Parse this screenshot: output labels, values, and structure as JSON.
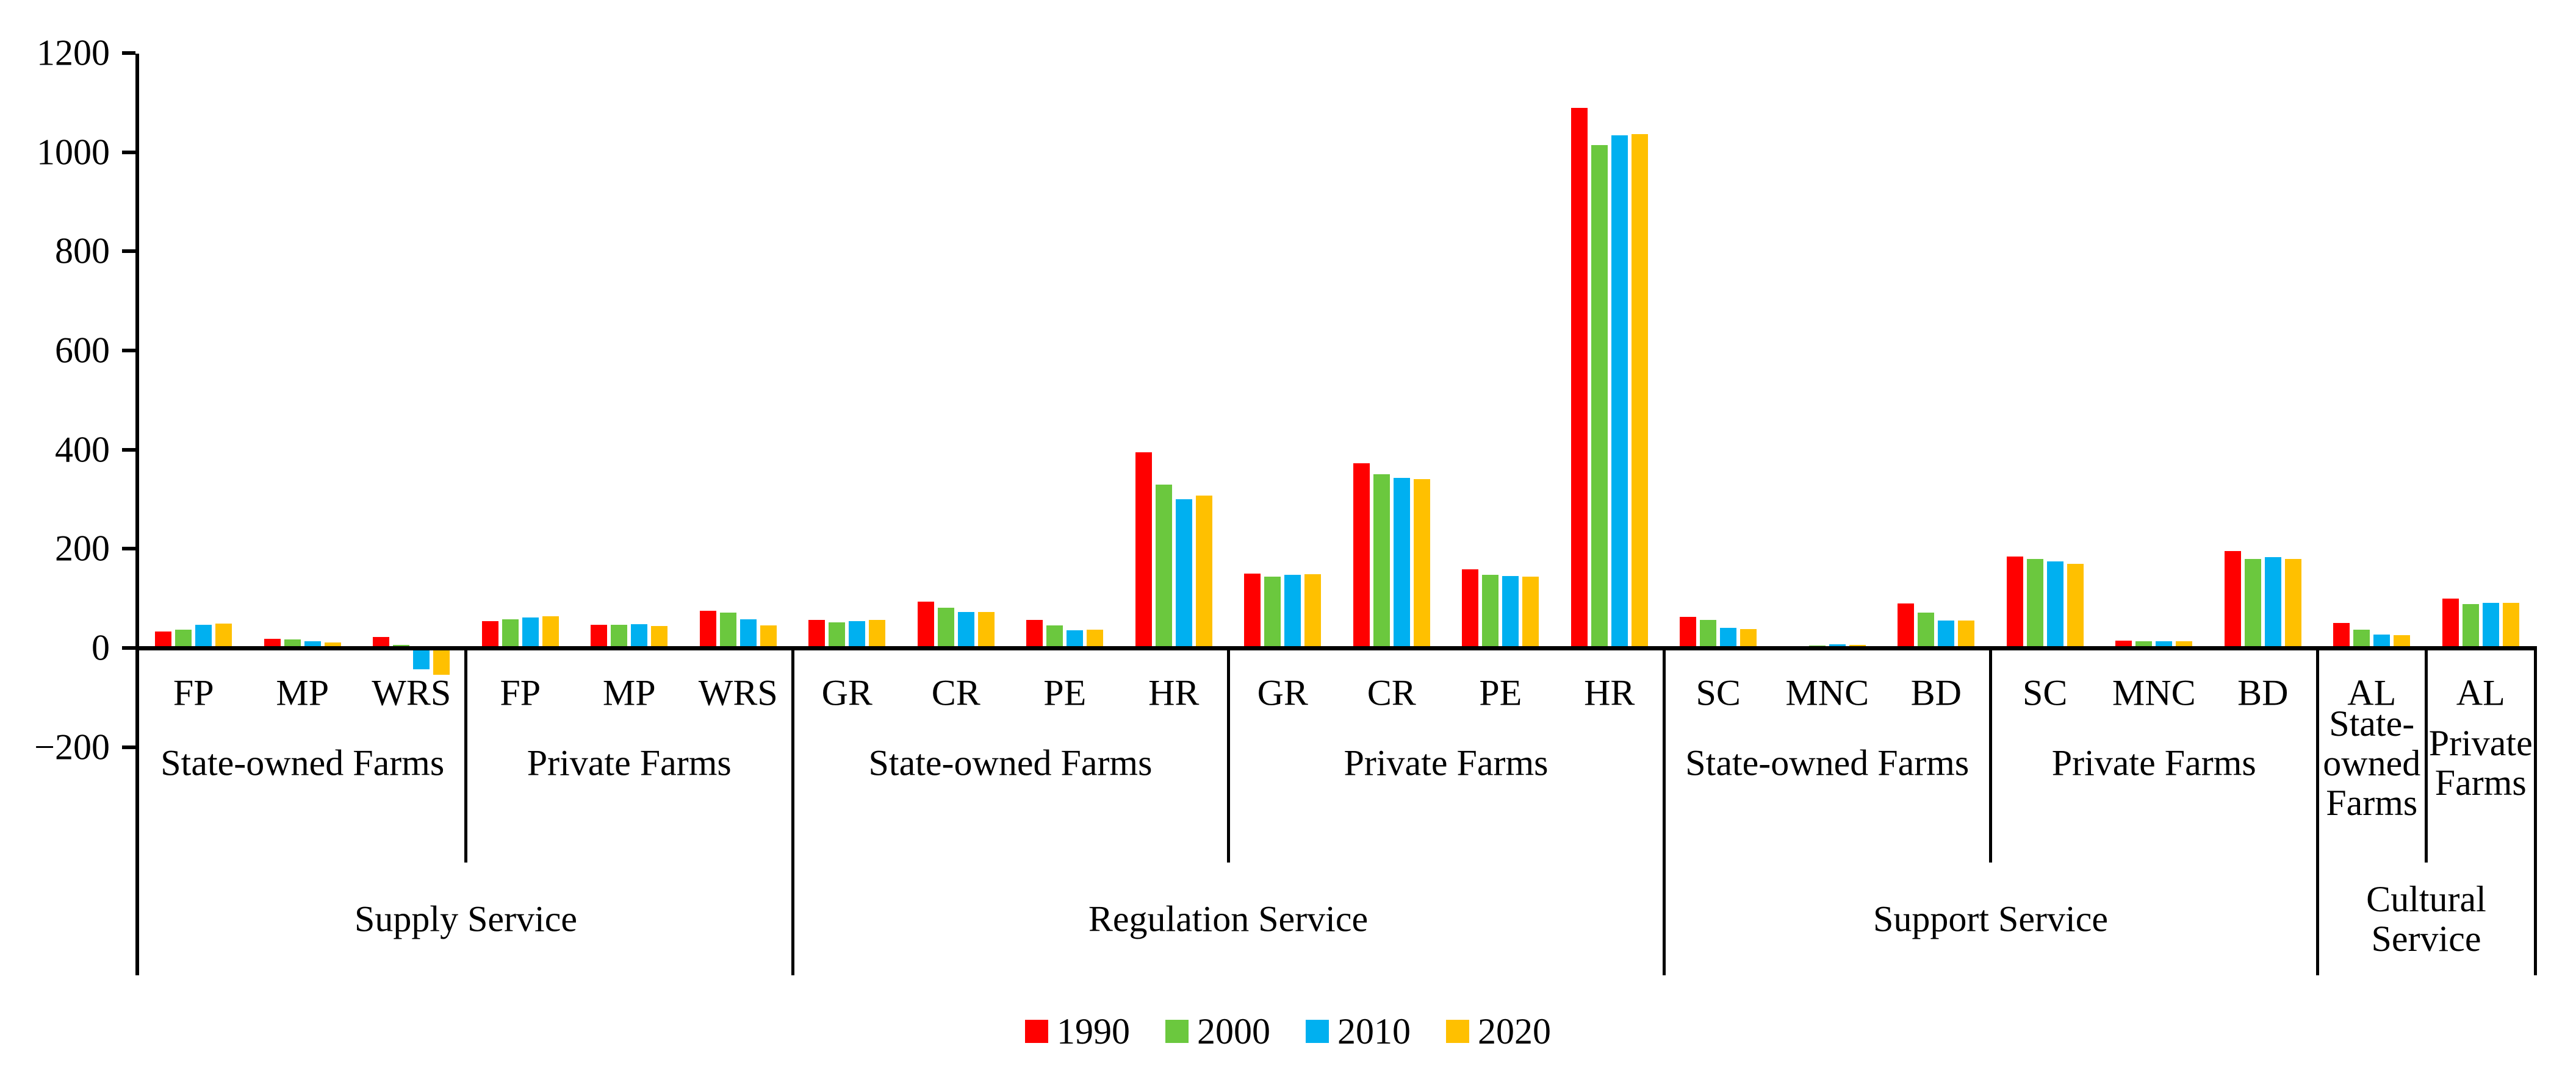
{
  "chart_data": {
    "type": "bar",
    "title": "",
    "xlabel": "",
    "ylabel": "",
    "ylim": [
      -200,
      1200
    ],
    "ytick_interval": 200,
    "yticks": [
      1200,
      1000,
      800,
      600,
      400,
      200,
      0,
      -200
    ],
    "grid": false,
    "legend_position": "bottom-center",
    "series": [
      "1990",
      "2000",
      "2010",
      "2020"
    ],
    "series_colors": [
      "#FF0000",
      "#6BC83E",
      "#00B0F0",
      "#FFC000"
    ],
    "sections": [
      {
        "service": "Supply Service",
        "service_label_lines": [
          "Supply Service"
        ],
        "farms": [
          {
            "name": "State-owned Farms",
            "label_lines": [
              "State-owned Farms"
            ],
            "items": [
              {
                "code": "FP",
                "values": [
                  33,
                  37,
                  47,
                  49
                ]
              },
              {
                "code": "MP",
                "values": [
                  19,
                  17,
                  13,
                  11
                ]
              },
              {
                "code": "WRS",
                "values": [
                  22,
                  6,
                  -34,
                  -45
                ]
              }
            ]
          },
          {
            "name": "Private Farms",
            "label_lines": [
              "Private Farms"
            ],
            "items": [
              {
                "code": "FP",
                "values": [
                  54,
                  58,
                  62,
                  64
                ]
              },
              {
                "code": "MP",
                "values": [
                  47,
                  47,
                  48,
                  44
                ]
              },
              {
                "code": "WRS",
                "values": [
                  75,
                  71,
                  58,
                  46
                ]
              }
            ]
          }
        ]
      },
      {
        "service": "Regulation Service",
        "service_label_lines": [
          "Regulation Service"
        ],
        "farms": [
          {
            "name": "State-owned Farms",
            "label_lines": [
              "State-owned Farms"
            ],
            "items": [
              {
                "code": "GR",
                "values": [
                  56,
                  52,
                  54,
                  56
                ]
              },
              {
                "code": "CR",
                "values": [
                  94,
                  81,
                  73,
                  73
                ]
              },
              {
                "code": "PE",
                "values": [
                  56,
                  45,
                  36,
                  37
                ]
              },
              {
                "code": "HR",
                "values": [
                  395,
                  330,
                  300,
                  307
                ]
              }
            ]
          },
          {
            "name": "Private Farms",
            "label_lines": [
              "Private Farms"
            ],
            "items": [
              {
                "code": "GR",
                "values": [
                  150,
                  144,
                  148,
                  149
                ]
              },
              {
                "code": "CR",
                "values": [
                  372,
                  350,
                  343,
                  341
                ]
              },
              {
                "code": "PE",
                "values": [
                  158,
                  147,
                  145,
                  144
                ]
              },
              {
                "code": "HR",
                "values": [
                  1090,
                  1015,
                  1034,
                  1036
                ]
              }
            ]
          }
        ]
      },
      {
        "service": "Support Service",
        "service_label_lines": [
          "Support Service"
        ],
        "farms": [
          {
            "name": "State-owned Farms",
            "label_lines": [
              "State-owned Farms"
            ],
            "items": [
              {
                "code": "SC",
                "values": [
                  63,
                  57,
                  41,
                  38
                ]
              },
              {
                "code": "MNC",
                "values": [
                  4,
                  5,
                  7,
                  6
                ]
              },
              {
                "code": "BD",
                "values": [
                  90,
                  71,
                  55,
                  55
                ]
              }
            ]
          },
          {
            "name": "Private Farms",
            "label_lines": [
              "Private Farms"
            ],
            "items": [
              {
                "code": "SC",
                "values": [
                  184,
                  180,
                  174,
                  170
                ]
              },
              {
                "code": "MNC",
                "values": [
                  15,
                  14,
                  14,
                  14
                ]
              },
              {
                "code": "BD",
                "values": [
                  196,
                  180,
                  183,
                  180
                ]
              }
            ]
          }
        ]
      },
      {
        "service": "Cultural Service",
        "service_label_lines": [
          "Cultural",
          "Service"
        ],
        "farms": [
          {
            "name": "State-owned Farms",
            "label_lines": [
              "State-",
              "owned",
              "Farms"
            ],
            "items": [
              {
                "code": "AL",
                "values": [
                  50,
                  37,
                  27,
                  26
                ]
              }
            ]
          },
          {
            "name": "Private Farms",
            "label_lines": [
              "Private",
              "Farms"
            ],
            "items": [
              {
                "code": "AL",
                "values": [
                  99,
                  88,
                  91,
                  91
                ]
              }
            ]
          }
        ]
      }
    ]
  },
  "legend": {
    "items": [
      {
        "label": "1990",
        "color": "#FF0000"
      },
      {
        "label": "2000",
        "color": "#6BC83E"
      },
      {
        "label": "2010",
        "color": "#00B0F0"
      },
      {
        "label": "2020",
        "color": "#FFC000"
      }
    ]
  }
}
